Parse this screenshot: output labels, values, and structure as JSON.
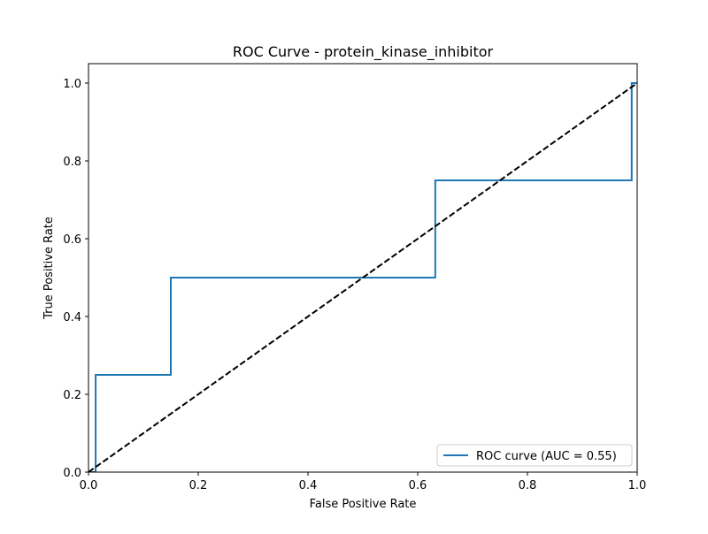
{
  "chart_data": {
    "type": "line",
    "title": "ROC Curve - protein_kinase_inhibitor",
    "xlabel": "False Positive Rate",
    "ylabel": "True Positive Rate",
    "xlim": [
      0.0,
      1.0
    ],
    "ylim": [
      0.0,
      1.05
    ],
    "x_ticks": [
      "0.0",
      "0.2",
      "0.4",
      "0.6",
      "0.8",
      "1.0"
    ],
    "y_ticks": [
      "0.0",
      "0.2",
      "0.4",
      "0.6",
      "0.8",
      "1.0"
    ],
    "grid": false,
    "legend_position": "lower-right",
    "series": [
      {
        "name": "ROC curve (AUC = 0.55)",
        "color": "#1f77b4",
        "style": "solid",
        "x": [
          0.0,
          0.013,
          0.013,
          0.15,
          0.15,
          0.632,
          0.632,
          0.99,
          0.99,
          1.0
        ],
        "y": [
          0.0,
          0.0,
          0.25,
          0.25,
          0.5,
          0.5,
          0.75,
          0.75,
          1.0,
          1.0
        ]
      },
      {
        "color": "#000000",
        "style": "dashed",
        "x": [
          0.0,
          1.0
        ],
        "y": [
          0.0,
          1.0
        ]
      }
    ]
  }
}
